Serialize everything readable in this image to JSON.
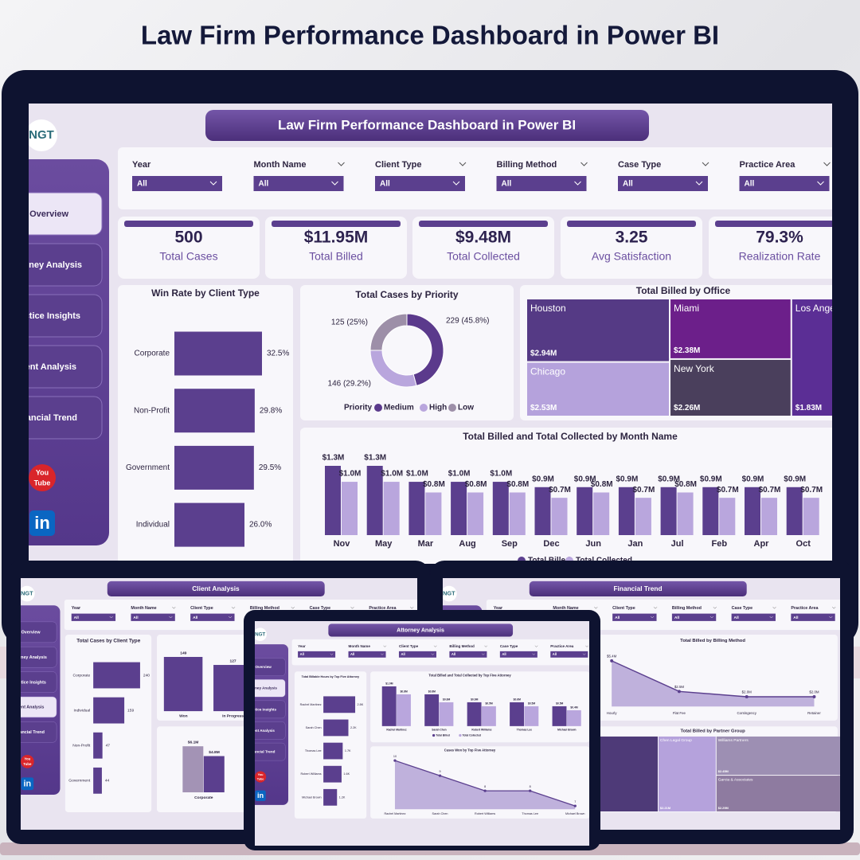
{
  "header": {
    "title": "Law Firm Performance Dashboard in Power BI"
  },
  "dashboard": {
    "logo": "NGT",
    "title": "Law Firm Performance Dashboard in Power BI",
    "nav": [
      "Overview",
      "Attorney Analysis",
      "Practice Insights",
      "Client Analysis",
      "Financial Trend"
    ],
    "social": {
      "youtube": [
        "You",
        "Tube"
      ],
      "linkedin": "in"
    },
    "filters": [
      {
        "label": "Year",
        "value": "All"
      },
      {
        "label": "Month Name",
        "value": "All"
      },
      {
        "label": "Client Type",
        "value": "All"
      },
      {
        "label": "Billing Method",
        "value": "All"
      },
      {
        "label": "Case Type",
        "value": "All"
      },
      {
        "label": "Practice Area",
        "value": "All"
      }
    ],
    "kpis": [
      {
        "value": "500",
        "label": "Total Cases"
      },
      {
        "value": "$11.95M",
        "label": "Total Billed"
      },
      {
        "value": "$9.48M",
        "label": "Total Collected"
      },
      {
        "value": "3.25",
        "label": "Avg Satisfaction"
      },
      {
        "value": "79.3%",
        "label": "Realization Rate"
      }
    ]
  },
  "screens": [
    {
      "title": "Client Analysis"
    },
    {
      "title": "Financial Trend"
    },
    {
      "title": "Attorney Analysis"
    }
  ],
  "chart_data": [
    {
      "type": "barh",
      "title": "Win Rate by Client Type",
      "categories": [
        "Corporate",
        "Non-Profit",
        "Government",
        "Individual"
      ],
      "values": [
        32.5,
        29.8,
        29.5,
        26.0
      ],
      "value_labels": [
        "32.5%",
        "29.8%",
        "29.5%",
        "26.0%"
      ],
      "color": "#5b3f8e"
    },
    {
      "type": "donut",
      "title": "Total Cases by Priority",
      "legend_title": "Priority",
      "categories": [
        "Medium",
        "High",
        "Low"
      ],
      "values": [
        229,
        146,
        125
      ],
      "value_labels": [
        "229 (45.8%)",
        "146 (29.2%)",
        "125 (25%)"
      ],
      "colors": [
        "#5b3a8c",
        "#b9a6dd",
        "#9d8fa8"
      ]
    },
    {
      "type": "treemap",
      "title": "Total Billed by Office",
      "categories": [
        "Houston",
        "Chicago",
        "Miami",
        "New York",
        "Los Angeles"
      ],
      "values": [
        2.94,
        2.53,
        2.38,
        2.26,
        1.83
      ],
      "value_labels": [
        "$2.94M",
        "$2.53M",
        "$2.38M",
        "$2.26M",
        "$1.83M"
      ],
      "colors": [
        "#553a85",
        "#b5a2dc",
        "#6c1f8a",
        "#4a3f5c",
        "#5b2e95"
      ]
    },
    {
      "type": "bar",
      "title": "Total Billed and Total Collected by Month Name",
      "categories": [
        "Nov",
        "May",
        "Mar",
        "Aug",
        "Sep",
        "Dec",
        "Jun",
        "Jan",
        "Jul",
        "Feb",
        "Apr",
        "Oct"
      ],
      "series": [
        {
          "name": "Total Billed",
          "color": "#5b3f8e",
          "values": [
            1.3,
            1.3,
            1.0,
            1.0,
            1.0,
            0.9,
            0.9,
            0.9,
            0.9,
            0.9,
            0.9,
            0.9
          ],
          "value_labels": [
            "$1.3M",
            "$1.3M",
            "$1.0M",
            "$1.0M",
            "$1.0M",
            "$0.9M",
            "$0.9M",
            "$0.9M",
            "$0.9M",
            "$0.9M",
            "$0.9M",
            "$0.9M"
          ]
        },
        {
          "name": "Total Collected",
          "color": "#b9a6dd",
          "values": [
            1.0,
            1.0,
            0.8,
            0.8,
            0.8,
            0.7,
            0.8,
            0.7,
            0.8,
            0.7,
            0.7,
            0.7
          ],
          "value_labels": [
            "$1.0M",
            "$1.0M",
            "$0.8M",
            "$0.8M",
            "$0.8M",
            "$0.7M",
            "$0.8M",
            "$0.7M",
            "$0.8M",
            "$0.7M",
            "$0.7M",
            "$0.7M"
          ]
        }
      ]
    },
    {
      "type": "barh",
      "title": "Total Cases by Client Type",
      "categories": [
        "Corporate",
        "Individual",
        "Non-Profit",
        "Government"
      ],
      "values": [
        240,
        159,
        47,
        44
      ],
      "color": "#5b3f8e"
    },
    {
      "type": "bar",
      "categories": [
        "Won",
        "In Progress"
      ],
      "values": [
        149,
        127
      ],
      "color": "#5b3f8e"
    },
    {
      "type": "bar",
      "categories": [
        "Corporate"
      ],
      "series": [
        {
          "color": "#a393b5",
          "values": [
            6.1
          ],
          "value_labels": [
            "$6.1M"
          ]
        },
        {
          "color": "#5b3f8e",
          "values": [
            4.8
          ],
          "value_labels": [
            "$4.8M"
          ]
        }
      ]
    },
    {
      "type": "barh",
      "title": "Total Billable Hours by Top Five Attorney",
      "categories": [
        "Rachel Martinez",
        "Sarah Chen",
        "Thomas Lee",
        "Robert Williams",
        "Michael Brown"
      ],
      "values": [
        2800,
        2200,
        1700,
        1600,
        1200
      ],
      "value_labels": [
        "2.8K",
        "2.2K",
        "1.7K",
        "1.6K",
        "1.2K"
      ],
      "color": "#5b3f8e"
    },
    {
      "type": "bar",
      "title": "Total Billed and Total Collected by Top Five Attorney",
      "categories": [
        "Rachel Martinez",
        "Sarah Chen",
        "Robert Williams",
        "Thomas Lee",
        "Michael Brown"
      ],
      "series": [
        {
          "name": "Total Billed",
          "color": "#5b3f8e",
          "values": [
            1.0,
            0.8,
            0.6,
            0.6,
            0.5
          ],
          "value_labels": [
            "$1.0M",
            "$0.8M",
            "$0.6M",
            "$0.6M",
            "$0.5M"
          ]
        },
        {
          "name": "Total Collected",
          "color": "#b9a6dd",
          "values": [
            0.8,
            0.6,
            0.5,
            0.5,
            0.4
          ],
          "value_labels": [
            "$0.8M",
            "$0.6M",
            "$0.5M",
            "$0.5M",
            "$0.4M"
          ]
        }
      ]
    },
    {
      "type": "area",
      "title": "Cases Won by Top Five Attorney",
      "categories": [
        "Rachel Martinez",
        "Sarah Chen",
        "Robert Williams",
        "Thomas Lee",
        "Michael Brown"
      ],
      "values": [
        10,
        9,
        8,
        8,
        7
      ],
      "color": "#5b3f8e",
      "fill": "#b5a5d6"
    },
    {
      "type": "area",
      "title": "Total Billed by Billing Method",
      "categories": [
        "Hourly",
        "Flat Fee",
        "Contingency",
        "Retainer"
      ],
      "values": [
        5.4,
        2.5,
        2.0,
        2.0
      ],
      "value_labels": [
        "$5.4M",
        "$2.5M",
        "$2.0M",
        "$2.0M"
      ],
      "color": "#5b3f8e",
      "fill": "#b5a5d6"
    },
    {
      "type": "treemap",
      "title": "Total Billed by Partner Group",
      "categories": [
        "Chen Legal Group",
        "Williams Partners",
        "Garcia & Associates",
        "Mitchell & Associates"
      ],
      "values": [
        2.21,
        2.45,
        2.29,
        1.87
      ],
      "value_labels": [
        "$2.21M",
        "$2.45M",
        "$2.29M",
        "$1.87M"
      ],
      "colors": [
        "#b5a2dc",
        "#9d8fb3",
        "#8e7ba0",
        "#6e4d7d"
      ]
    }
  ]
}
